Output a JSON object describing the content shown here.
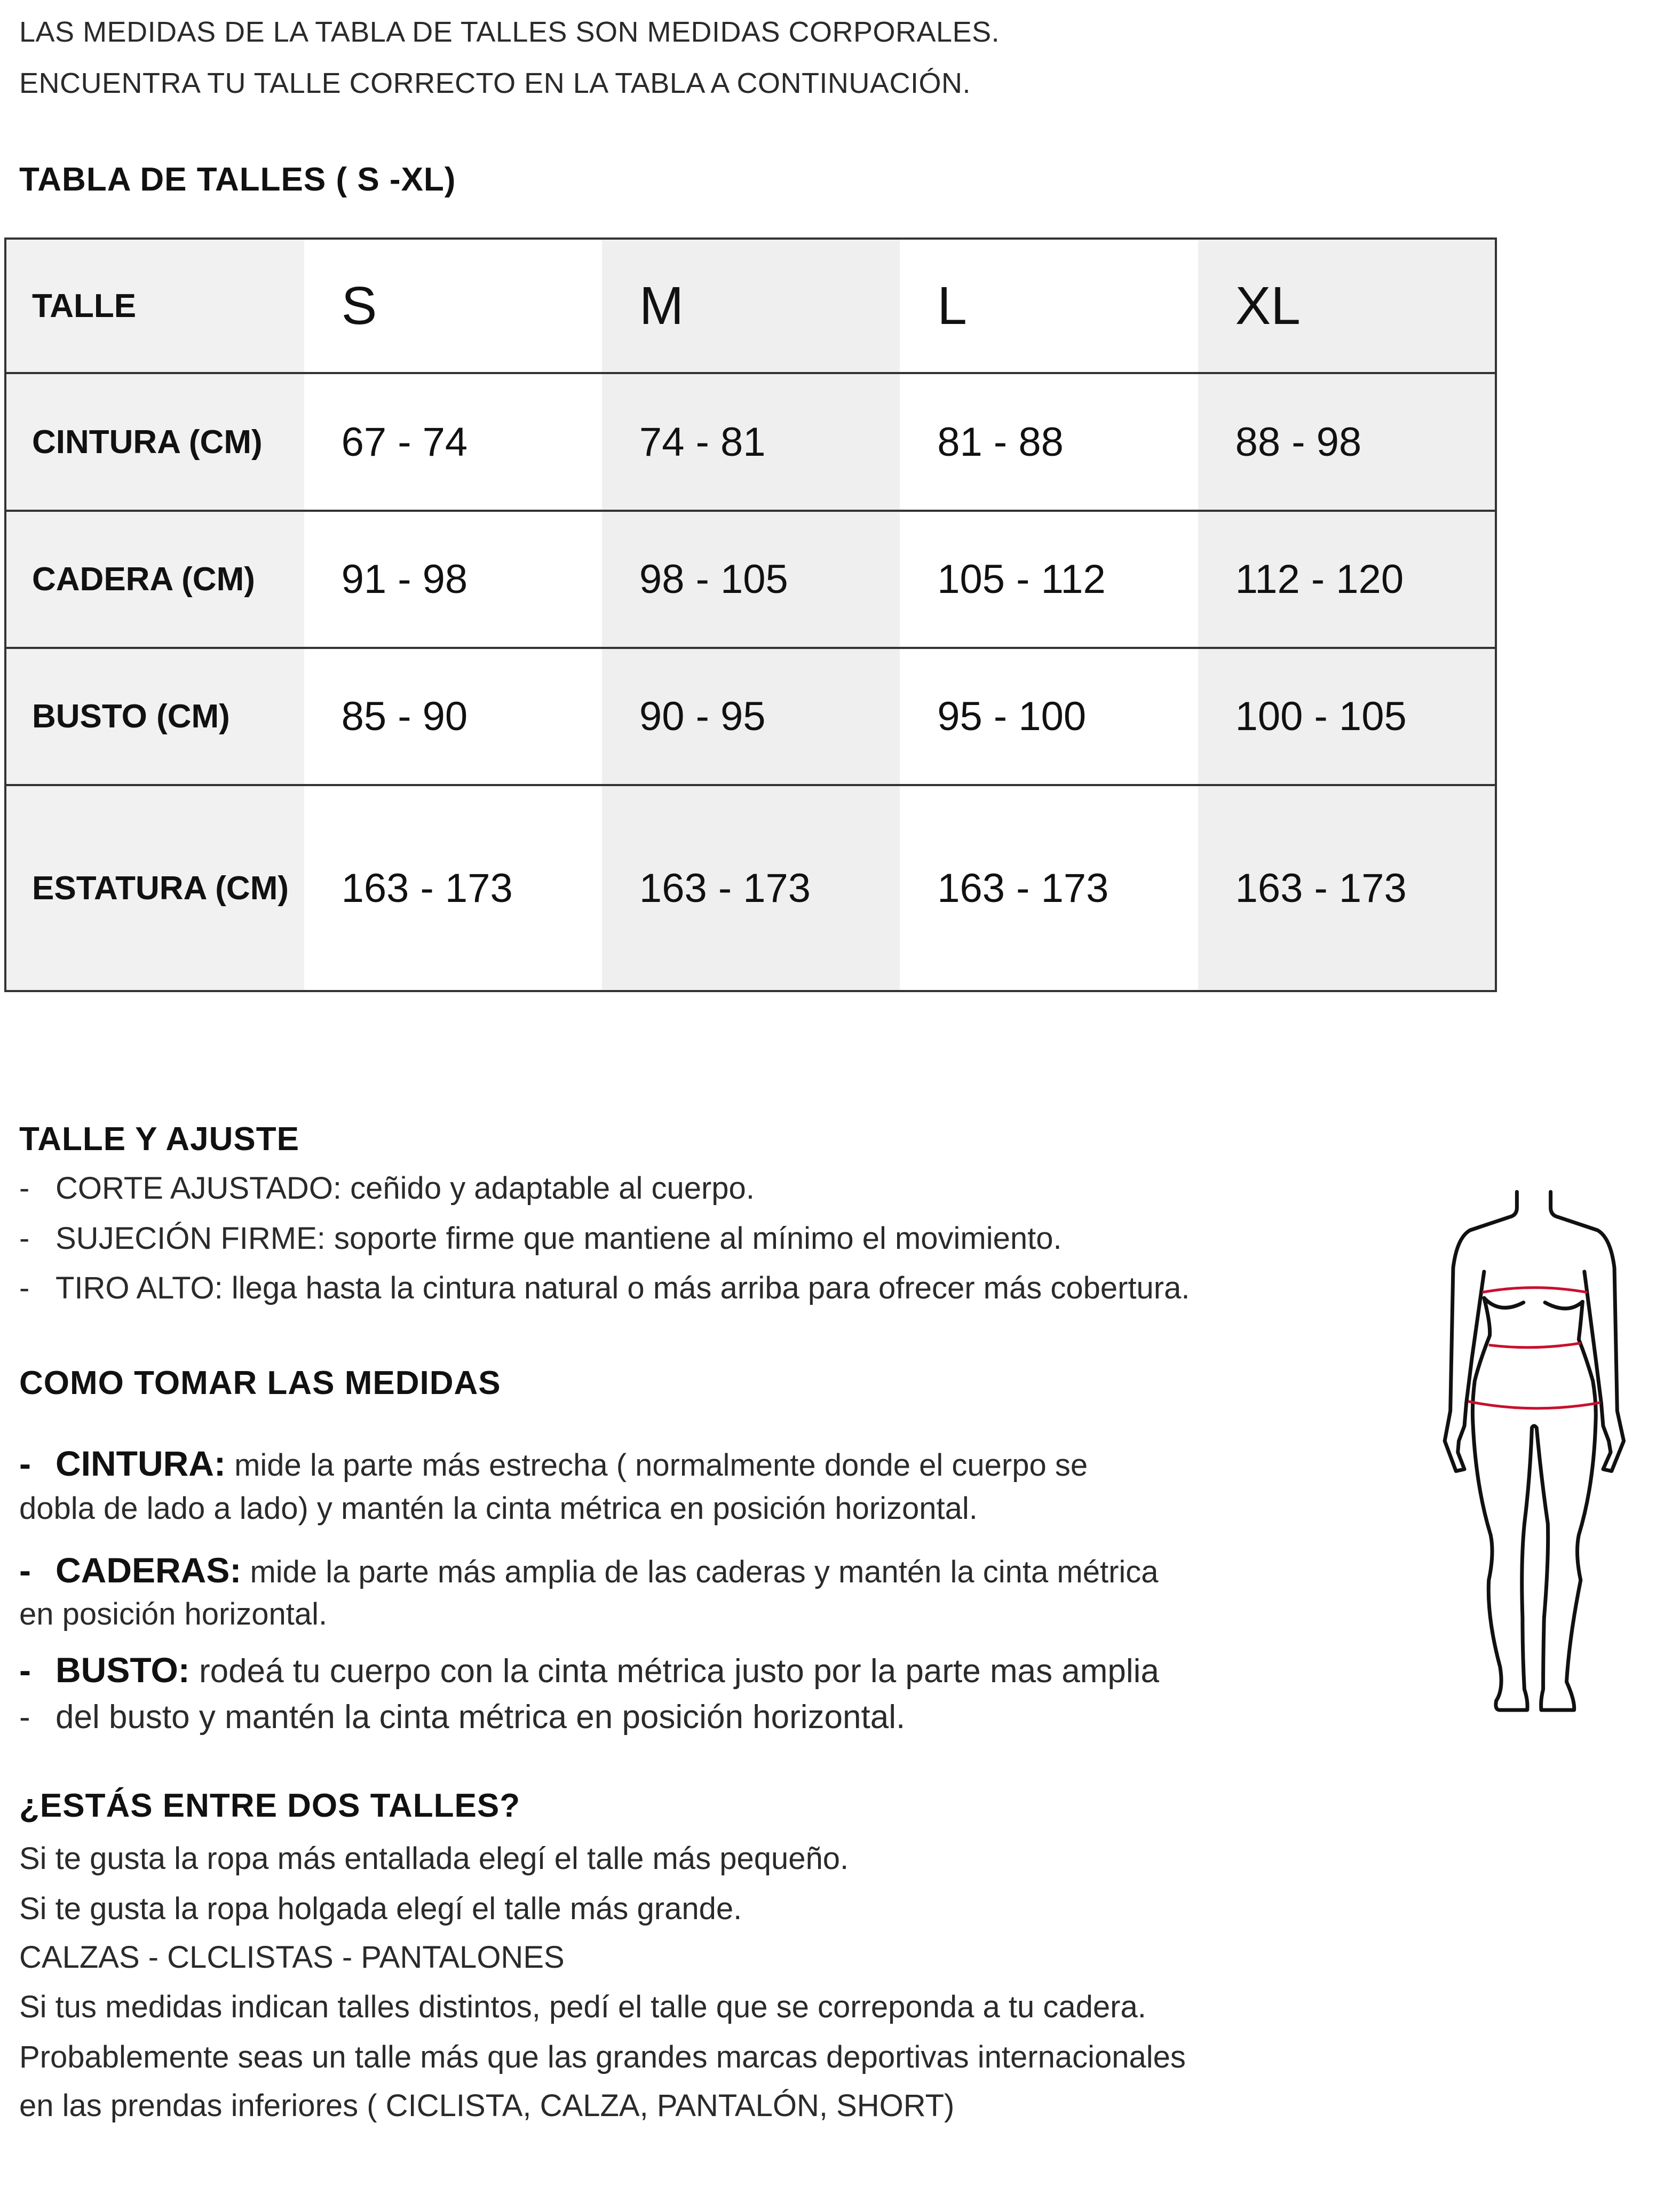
{
  "intro": [
    "LAS MEDIDAS DE LA TABLA DE TALLES SON MEDIDAS CORPORALES.",
    "ENCUENTRA TU TALLE CORRECTO EN LA TABLA A CONTINUACIÓN."
  ],
  "table_title": "TABLA DE TALLES ( S -XL)",
  "size_table": {
    "header": [
      "TALLE",
      "S",
      "M",
      "L",
      "XL"
    ],
    "rows": [
      [
        "CINTURA (CM)",
        "67 - 74",
        "74 - 81",
        "81 - 88",
        "88 - 98"
      ],
      [
        "CADERA (CM)",
        "91 - 98",
        "98 - 105",
        "105 - 112",
        "112 - 120"
      ],
      [
        "BUSTO (CM)",
        "85 - 90",
        "90 - 95",
        "95 - 100",
        "100 - 105"
      ],
      [
        "ESTATURA (CM)",
        "163 - 173",
        "163 - 173",
        "163 - 173",
        "163 - 173"
      ]
    ]
  },
  "fit": {
    "title": "TALLE Y AJUSTE",
    "items": [
      "CORTE AJUSTADO: ceñido y adaptable al cuerpo.",
      "SUJECIÓN FIRME: soporte firme que mantiene al mínimo el movimiento.",
      "TIRO ALTO: llega hasta la cintura natural o más arriba para ofrecer más cobertura."
    ]
  },
  "measure": {
    "title": "COMO TOMAR LAS MEDIDAS",
    "items": [
      {
        "term": "CINTURA:",
        "line1": " mide la parte más estrecha ( normalmente donde el cuerpo se",
        "line2": "dobla de lado a lado) y mantén la cinta métrica en posición horizontal."
      },
      {
        "term": "CADERAS:",
        "line1": " mide la parte más amplia de las caderas y mantén la cinta métrica",
        "line2": "en posición horizontal."
      },
      {
        "term": "BUSTO:",
        "line1": " rodeá tu cuerpo con la cinta métrica justo por la parte mas amplia",
        "line2": "del busto y mantén la cinta métrica en posición horizontal."
      }
    ]
  },
  "between": {
    "title": "¿ESTÁS ENTRE DOS TALLES?",
    "lines": [
      "Si te gusta la ropa más entallada elegí el talle más pequeño.",
      "Si te gusta la ropa holgada elegí el talle más grande.",
      "CALZAS - CLCLISTAS - PANTALONES",
      "Si tus medidas indican talles distintos, pedí el talle que se correponda a tu cadera.",
      "Probablemente seas un talle más que las grandes marcas deportivas internacionales",
      "en las prendas inferiores ( CICLISTA, CALZA, PANTALÓN, SHORT)"
    ]
  },
  "figure": {
    "icon": "body-measurement-figure",
    "line_color": "#111111",
    "measure_color": "#c8102e"
  },
  "colors": {
    "shaded_cell": "#efefef",
    "border": "#333333"
  }
}
